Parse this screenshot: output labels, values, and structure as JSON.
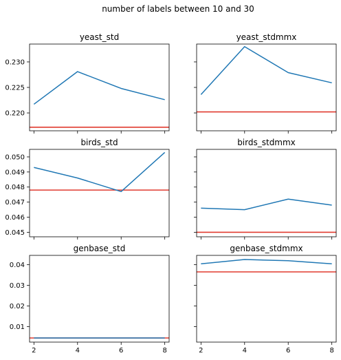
{
  "figure": {
    "suptitle": "number of labels between 10 and 30"
  },
  "chart_data": [
    {
      "type": "line",
      "title": "yeast_std",
      "x": [
        2,
        4,
        6,
        8
      ],
      "series": [
        {
          "values": [
            0.2217,
            0.2281,
            0.2248,
            0.2226
          ]
        }
      ],
      "hline": 0.2172,
      "ylim": [
        0.2165,
        0.2335
      ],
      "yticks": [
        "0.220",
        "0.225",
        "0.230"
      ],
      "yticks_values": [
        0.22,
        0.225,
        0.23
      ],
      "show_ytick_labels": true,
      "show_xtick_labels": false,
      "xticks": [
        2,
        4,
        6,
        8
      ],
      "xlim": [
        1.8,
        8.2
      ],
      "colors": {
        "line": "#1f77b4",
        "hline": "#e03a2f"
      }
    },
    {
      "type": "line",
      "title": "yeast_stdmmx",
      "x": [
        2,
        4,
        6,
        8
      ],
      "series": [
        {
          "values": [
            0.2236,
            0.233,
            0.2279,
            0.2259
          ]
        }
      ],
      "hline": 0.2202,
      "ylim": [
        0.2165,
        0.2335
      ],
      "yticks": [
        "0.220",
        "0.225",
        "0.230"
      ],
      "yticks_values": [
        0.22,
        0.225,
        0.23
      ],
      "show_ytick_labels": false,
      "show_xtick_labels": false,
      "xticks": [
        2,
        4,
        6,
        8
      ],
      "xlim": [
        1.8,
        8.2
      ],
      "colors": {
        "line": "#1f77b4",
        "hline": "#e03a2f"
      }
    },
    {
      "type": "line",
      "title": "birds_std",
      "x": [
        2,
        4,
        6,
        8
      ],
      "series": [
        {
          "values": [
            0.0493,
            0.0486,
            0.0477,
            0.0503
          ]
        }
      ],
      "hline": 0.0478,
      "ylim": [
        0.0447,
        0.0505
      ],
      "yticks": [
        "0.045",
        "0.046",
        "0.047",
        "0.048",
        "0.049",
        "0.050"
      ],
      "yticks_values": [
        0.045,
        0.046,
        0.047,
        0.048,
        0.049,
        0.05
      ],
      "show_ytick_labels": true,
      "show_xtick_labels": false,
      "xticks": [
        2,
        4,
        6,
        8
      ],
      "xlim": [
        1.8,
        8.2
      ],
      "colors": {
        "line": "#1f77b4",
        "hline": "#e03a2f"
      }
    },
    {
      "type": "line",
      "title": "birds_stdmmx",
      "x": [
        2,
        4,
        6,
        8
      ],
      "series": [
        {
          "values": [
            0.0466,
            0.0465,
            0.0472,
            0.0468
          ]
        }
      ],
      "hline": 0.045,
      "ylim": [
        0.0447,
        0.0505
      ],
      "yticks": [
        "0.045",
        "0.046",
        "0.047",
        "0.048",
        "0.049",
        "0.050"
      ],
      "yticks_values": [
        0.045,
        0.046,
        0.047,
        0.048,
        0.049,
        0.05
      ],
      "show_ytick_labels": false,
      "show_xtick_labels": false,
      "xticks": [
        2,
        4,
        6,
        8
      ],
      "xlim": [
        1.8,
        8.2
      ],
      "colors": {
        "line": "#1f77b4",
        "hline": "#e03a2f"
      }
    },
    {
      "type": "line",
      "title": "genbase_std",
      "x": [
        2,
        4,
        6,
        8
      ],
      "series": [
        {
          "values": [
            0.0045,
            0.0045,
            0.0045,
            0.0045
          ]
        }
      ],
      "hline": 0.0045,
      "ylim": [
        0.0025,
        0.0445
      ],
      "yticks": [
        "0.01",
        "0.02",
        "0.03",
        "0.04"
      ],
      "yticks_values": [
        0.01,
        0.02,
        0.03,
        0.04
      ],
      "show_ytick_labels": true,
      "show_xtick_labels": true,
      "xticks": [
        2,
        4,
        6,
        8
      ],
      "xlim": [
        1.8,
        8.2
      ],
      "colors": {
        "line": "#1f77b4",
        "hline": "#e03a2f"
      }
    },
    {
      "type": "line",
      "title": "genbase_stdmmx",
      "x": [
        2,
        4,
        6,
        8
      ],
      "series": [
        {
          "values": [
            0.0404,
            0.0425,
            0.0419,
            0.0404
          ]
        }
      ],
      "hline": 0.0365,
      "ylim": [
        0.0025,
        0.0445
      ],
      "yticks": [
        "0.01",
        "0.02",
        "0.03",
        "0.04"
      ],
      "yticks_values": [
        0.01,
        0.02,
        0.03,
        0.04
      ],
      "show_ytick_labels": false,
      "show_xtick_labels": true,
      "xticks": [
        2,
        4,
        6,
        8
      ],
      "xlim": [
        1.8,
        8.2
      ],
      "colors": {
        "line": "#1f77b4",
        "hline": "#e03a2f"
      }
    }
  ]
}
